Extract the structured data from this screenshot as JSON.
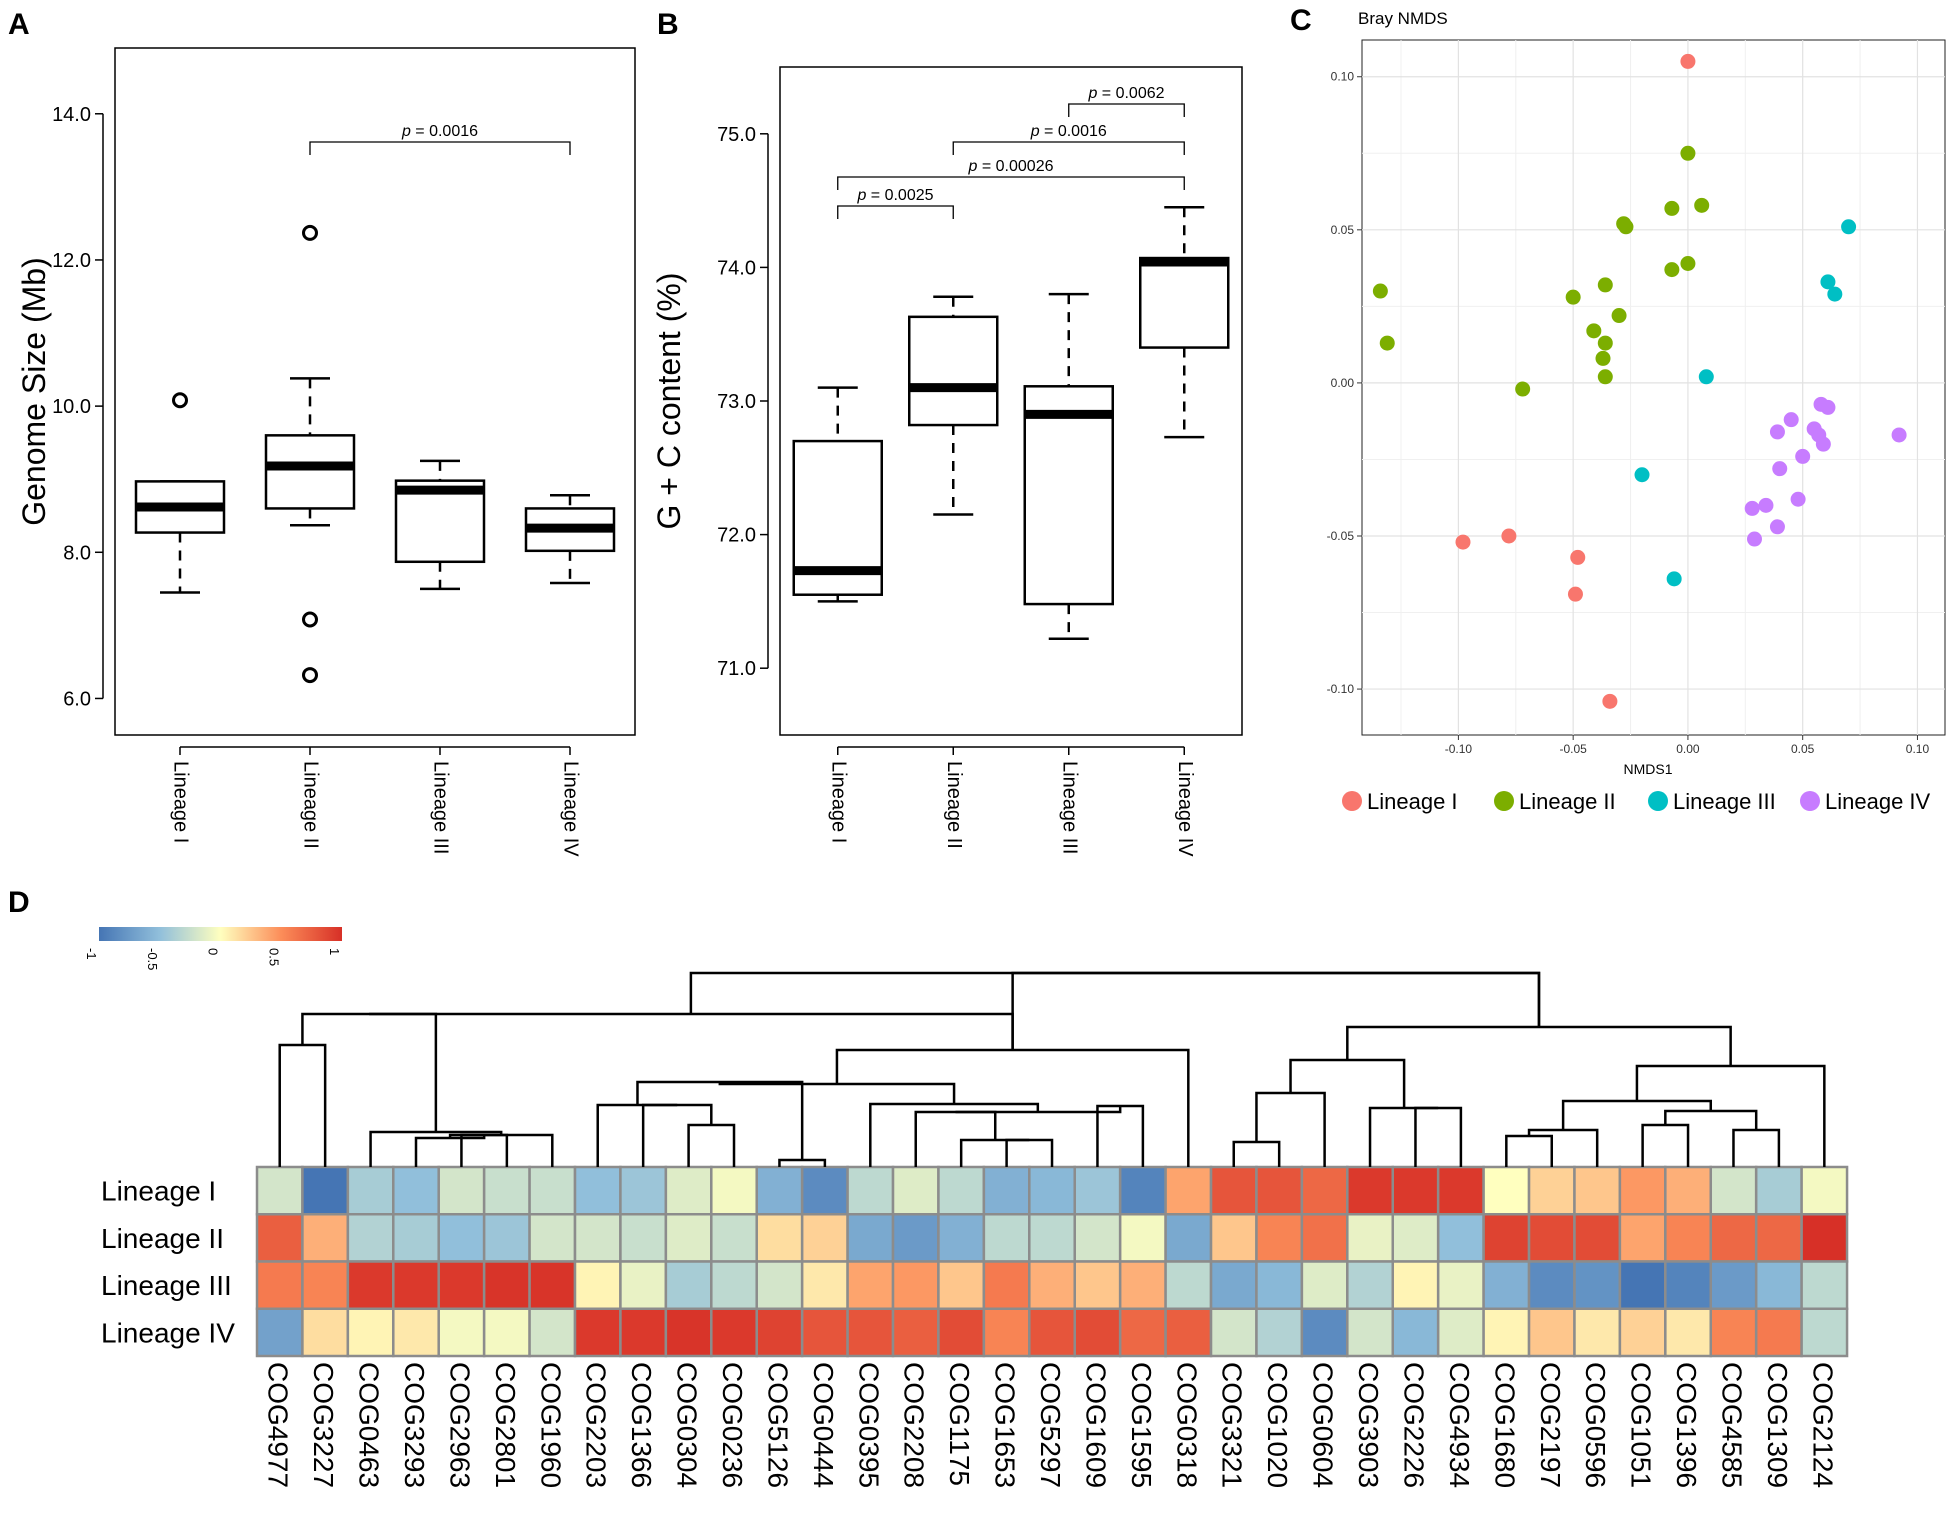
{
  "chart_data": [
    {
      "panel": "A",
      "type": "box",
      "ylabel": "Genome Size (Mb)",
      "ylim": [
        5.5,
        14.9
      ],
      "yticks": [
        "6.0",
        "8.0",
        "10.0",
        "12.0",
        "14.0"
      ],
      "categories": [
        "Lineage I",
        "Lineage II",
        "Lineage III",
        "Lineage IV"
      ],
      "boxes": [
        {
          "min": 7.45,
          "q1": 8.27,
          "median": 8.62,
          "q3": 8.97,
          "max": 8.97,
          "outliers": [
            10.08
          ]
        },
        {
          "min": 8.37,
          "q1": 8.6,
          "median": 9.18,
          "q3": 9.6,
          "max": 10.38,
          "outliers": [
            12.37,
            7.08,
            6.32
          ]
        },
        {
          "min": 7.5,
          "q1": 7.87,
          "median": 8.85,
          "q3": 8.98,
          "max": 9.25,
          "outliers": []
        },
        {
          "min": 7.58,
          "q1": 8.02,
          "median": 8.33,
          "q3": 8.6,
          "max": 8.78,
          "outliers": []
        }
      ],
      "brackets": [
        {
          "from": 1,
          "to": 3,
          "label": "= 0.0016"
        }
      ]
    },
    {
      "panel": "B",
      "type": "box",
      "ylabel": "G + C content (%)",
      "ylim": [
        70.5,
        75.5
      ],
      "yticks": [
        "71.0",
        "72.0",
        "73.0",
        "74.0",
        "75.0"
      ],
      "categories": [
        "Lineage I",
        "Lineage II",
        "Lineage III",
        "Lineage IV"
      ],
      "boxes": [
        {
          "min": 71.5,
          "q1": 71.55,
          "median": 71.73,
          "q3": 72.7,
          "max": 73.1,
          "outliers": []
        },
        {
          "min": 72.15,
          "q1": 72.82,
          "median": 73.1,
          "q3": 73.63,
          "max": 73.78,
          "outliers": []
        },
        {
          "min": 71.22,
          "q1": 71.48,
          "median": 72.9,
          "q3": 73.11,
          "max": 73.8,
          "outliers": []
        },
        {
          "min": 72.73,
          "q1": 73.4,
          "median": 74.04,
          "q3": 74.07,
          "max": 74.45,
          "outliers": []
        }
      ],
      "brackets": [
        {
          "from": 0,
          "to": 1,
          "label": "= 0.0025"
        },
        {
          "from": 0,
          "to": 3,
          "label": "= 0.00026"
        },
        {
          "from": 1,
          "to": 3,
          "label": "= 0.0016"
        },
        {
          "from": 2,
          "to": 3,
          "label": "= 0.0062"
        }
      ]
    },
    {
      "panel": "C",
      "type": "scatter",
      "title": "Bray NMDS",
      "xlabel": "NMDS1",
      "xlim": [
        -0.142,
        0.112
      ],
      "ylim": [
        -0.115,
        0.112
      ],
      "xticks": [
        "-0.10",
        "-0.05",
        "0.00",
        "0.05",
        "0.10"
      ],
      "yticks": [
        "-0.10",
        "-0.05",
        "0.00",
        "0.05",
        "0.10"
      ],
      "series": [
        {
          "name": "Lineage I",
          "color": "#f8766d",
          "points": [
            [
              0.0,
              0.105
            ],
            [
              -0.098,
              -0.052
            ],
            [
              -0.078,
              -0.05
            ],
            [
              -0.048,
              -0.057
            ],
            [
              -0.049,
              -0.069
            ],
            [
              -0.034,
              -0.104
            ]
          ]
        },
        {
          "name": "Lineage II",
          "color": "#7cae00",
          "points": [
            [
              0.0,
              0.075
            ],
            [
              -0.007,
              0.057
            ],
            [
              0.006,
              0.058
            ],
            [
              -0.028,
              0.052
            ],
            [
              -0.027,
              0.051
            ],
            [
              -0.007,
              0.037
            ],
            [
              0.0,
              0.039
            ],
            [
              -0.134,
              0.03
            ],
            [
              -0.131,
              0.013
            ],
            [
              -0.05,
              0.028
            ],
            [
              -0.036,
              0.032
            ],
            [
              -0.03,
              0.022
            ],
            [
              -0.041,
              0.017
            ],
            [
              -0.036,
              0.013
            ],
            [
              -0.037,
              0.008
            ],
            [
              -0.036,
              0.002
            ],
            [
              -0.072,
              -0.002
            ]
          ]
        },
        {
          "name": "Lineage III",
          "color": "#00bfc4",
          "points": [
            [
              0.07,
              0.051
            ],
            [
              0.061,
              0.033
            ],
            [
              0.064,
              0.029
            ],
            [
              0.008,
              0.002
            ],
            [
              -0.02,
              -0.03
            ],
            [
              -0.006,
              -0.064
            ]
          ]
        },
        {
          "name": "Lineage IV",
          "color": "#c77cff",
          "points": [
            [
              0.092,
              -0.017
            ],
            [
              0.058,
              -0.007
            ],
            [
              0.061,
              -0.008
            ],
            [
              0.045,
              -0.012
            ],
            [
              0.039,
              -0.016
            ],
            [
              0.055,
              -0.015
            ],
            [
              0.057,
              -0.017
            ],
            [
              0.059,
              -0.02
            ],
            [
              0.05,
              -0.024
            ],
            [
              0.04,
              -0.028
            ],
            [
              0.028,
              -0.041
            ],
            [
              0.034,
              -0.04
            ],
            [
              0.048,
              -0.038
            ],
            [
              0.039,
              -0.047
            ],
            [
              0.029,
              -0.051
            ]
          ]
        }
      ]
    },
    {
      "panel": "D",
      "type": "heatmap",
      "rows": [
        "Lineage I",
        "Lineage II",
        "Lineage III",
        "Lineage IV"
      ],
      "columns": [
        "COG4977",
        "COG3227",
        "COG0463",
        "COG3293",
        "COG2963",
        "COG2801",
        "COG1960",
        "COG2203",
        "COG1366",
        "COG0304",
        "COG0236",
        "COG5126",
        "COG0444",
        "COG0395",
        "COG2208",
        "COG1175",
        "COG1653",
        "COG5297",
        "COG1609",
        "COG1595",
        "COG0318",
        "COG3321",
        "COG1020",
        "COG0604",
        "COG3903",
        "COG2226",
        "COG4934",
        "COG1680",
        "COG2197",
        "COG0596",
        "COG1051",
        "COG1396",
        "COG4585",
        "COG1309",
        "COG2124"
      ],
      "legend": {
        "range": [
          -1,
          1
        ],
        "ticks": [
          "-1",
          "-0.5",
          "0",
          "0.5",
          "1"
        ]
      },
      "values": [
        [
          -0.2,
          -1.0,
          -0.4,
          -0.5,
          -0.2,
          -0.25,
          -0.25,
          -0.5,
          -0.45,
          -0.15,
          -0.05,
          -0.6,
          -0.85,
          -0.3,
          -0.15,
          -0.3,
          -0.6,
          -0.55,
          -0.45,
          -0.9,
          0.4,
          0.8,
          0.8,
          0.7,
          0.95,
          0.95,
          0.95,
          0.0,
          0.2,
          0.25,
          0.45,
          0.35,
          -0.2,
          -0.4,
          -0.05
        ],
        [
          0.75,
          0.35,
          -0.35,
          -0.4,
          -0.5,
          -0.45,
          -0.2,
          -0.2,
          -0.25,
          -0.15,
          -0.25,
          0.15,
          0.2,
          -0.65,
          -0.75,
          -0.6,
          -0.3,
          -0.3,
          -0.2,
          -0.05,
          -0.65,
          0.25,
          0.55,
          0.65,
          -0.1,
          -0.15,
          -0.5,
          0.9,
          0.85,
          0.85,
          0.4,
          0.55,
          0.7,
          0.7,
          1.0
        ],
        [
          0.6,
          0.55,
          0.95,
          0.95,
          0.95,
          0.98,
          0.98,
          0.05,
          -0.1,
          -0.4,
          -0.3,
          -0.2,
          0.1,
          0.4,
          0.45,
          0.25,
          0.6,
          0.35,
          0.25,
          0.35,
          -0.3,
          -0.65,
          -0.55,
          -0.15,
          -0.35,
          0.05,
          -0.1,
          -0.6,
          -0.85,
          -0.8,
          -1.0,
          -0.9,
          -0.75,
          -0.55,
          -0.3
        ],
        [
          -0.7,
          0.15,
          0.05,
          0.1,
          -0.05,
          -0.05,
          -0.2,
          0.95,
          0.95,
          0.98,
          0.95,
          0.9,
          0.8,
          0.8,
          0.75,
          0.85,
          0.55,
          0.8,
          0.85,
          0.7,
          0.75,
          -0.2,
          -0.35,
          -0.85,
          -0.2,
          -0.55,
          -0.15,
          0.05,
          0.25,
          0.1,
          0.2,
          0.1,
          0.55,
          0.6,
          -0.3
        ]
      ],
      "dendrogram": [
        [
          0,
          1
        ],
        [
          4,
          5
        ],
        [
          3,
          36
        ],
        [
          37,
          6
        ],
        [
          2,
          38
        ],
        [
          35,
          39
        ],
        [
          9,
          10
        ],
        [
          8,
          41
        ],
        [
          7,
          42
        ],
        [
          11,
          12
        ],
        [
          43,
          44
        ],
        [
          16,
          17
        ],
        [
          15,
          46
        ],
        [
          14,
          47
        ],
        [
          18,
          19
        ],
        [
          48,
          49
        ],
        [
          13,
          50
        ],
        [
          45,
          51
        ],
        [
          52,
          20
        ],
        [
          40,
          53
        ],
        [
          21,
          22
        ],
        [
          25,
          26
        ],
        [
          24,
          56
        ],
        [
          55,
          23
        ],
        [
          58,
          57
        ],
        [
          27,
          28
        ],
        [
          60,
          29
        ],
        [
          32,
          33
        ],
        [
          30,
          31
        ],
        [
          62,
          63
        ],
        [
          61,
          64
        ],
        [
          65,
          34
        ],
        [
          59,
          66
        ],
        [
          54,
          67
        ]
      ]
    }
  ]
}
